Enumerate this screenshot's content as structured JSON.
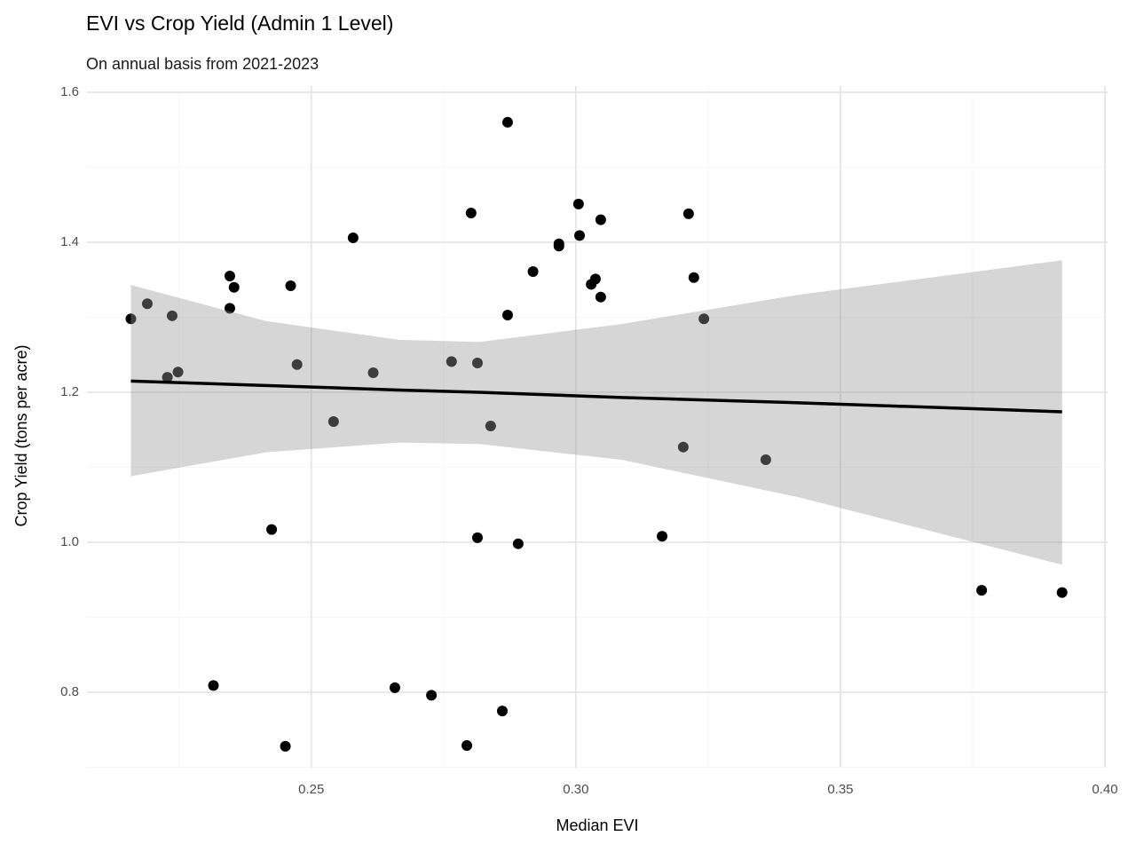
{
  "chart_data": {
    "type": "scatter",
    "title": "EVI vs Crop Yield (Admin 1 Level)",
    "subtitle": "On annual basis from 2021-2023",
    "x_label": "Median EVI",
    "y_label": "Crop Yield (tons per acre)",
    "xlim": [
      0.2076,
      0.4005
    ],
    "ylim": [
      0.6994,
      1.6083
    ],
    "xticks": [
      0.25,
      {
        "value": 0.3,
        "label": "0.30"
      },
      0.35,
      {
        "value": 0.4,
        "label": "0.40"
      }
    ],
    "yticks": [
      {
        "value": 0.8,
        "label": "0.8"
      },
      {
        "value": 1,
        "label": "1.0"
      },
      {
        "value": 1.2,
        "label": "1.2"
      },
      {
        "value": 1.4,
        "label": "1.4"
      },
      {
        "value": 1.6,
        "label": "1.6"
      }
    ],
    "x_minor_ticks": [
      0.225,
      0.275,
      0.325,
      0.375
    ],
    "y_minor_ticks": [
      0.7,
      0.9,
      1.1,
      1.3,
      1.5
    ],
    "grid": true,
    "color": "#000000",
    "x": [
      0.2159,
      0.219,
      0.2237,
      0.2228,
      0.2248,
      0.2315,
      0.2346,
      0.2346,
      0.2354,
      0.2425,
      0.2451,
      0.2461,
      0.2473,
      0.2542,
      0.2579,
      0.2617,
      0.2658,
      0.2727,
      0.2765,
      0.2794,
      0.2802,
      0.2814,
      0.2814,
      0.2839,
      0.2861,
      0.2871,
      0.2871,
      0.2891,
      0.2919,
      0.2968,
      0.2968,
      0.3005,
      0.3007,
      0.3029,
      0.3037,
      0.3047,
      0.3047,
      0.3163,
      0.3203,
      0.3213,
      0.3223,
      0.3242,
      0.3359,
      0.3767,
      0.3919
    ],
    "values": [
      1.298,
      1.318,
      1.302,
      1.22,
      1.227,
      0.809,
      1.355,
      1.312,
      1.34,
      1.017,
      0.728,
      1.342,
      1.237,
      1.161,
      1.406,
      1.226,
      0.806,
      0.796,
      1.241,
      0.729,
      1.439,
      1.239,
      1.006,
      1.155,
      0.775,
      1.56,
      1.303,
      0.998,
      1.361,
      1.398,
      1.395,
      1.451,
      1.409,
      1.344,
      1.351,
      1.43,
      1.327,
      1.008,
      1.127,
      1.438,
      1.353,
      1.298,
      1.11,
      0.936,
      0.933
    ],
    "smooth": {
      "color": "#000000",
      "band_color": "#999999",
      "x": [
        0.2159,
        0.2414,
        0.2666,
        0.2817,
        0.3086,
        0.3421,
        0.3919
      ],
      "fit": [
        1.215,
        1.209,
        1.203,
        1.2,
        1.193,
        1.186,
        1.174
      ],
      "lower": [
        1.088,
        1.12,
        1.133,
        1.131,
        1.11,
        1.06,
        0.97
      ],
      "upper": [
        1.343,
        1.295,
        1.27,
        1.267,
        1.291,
        1.33,
        1.376
      ]
    }
  }
}
